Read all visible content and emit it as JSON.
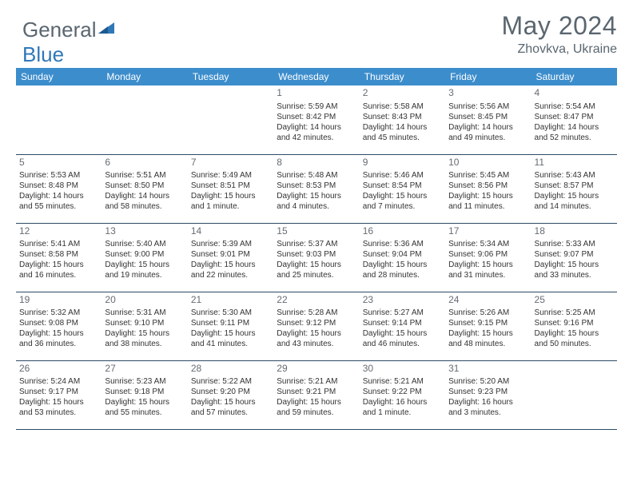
{
  "logo": {
    "part1": "General",
    "part2": "Blue"
  },
  "header": {
    "month": "May 2024",
    "location": "Zhovkva, Ukraine"
  },
  "colors": {
    "header_bg": "#3c8dcc",
    "header_text": "#ffffff",
    "cell_border": "#2c4a66",
    "body_text": "#333333",
    "muted_text": "#5a6670"
  },
  "day_names": [
    "Sunday",
    "Monday",
    "Tuesday",
    "Wednesday",
    "Thursday",
    "Friday",
    "Saturday"
  ],
  "weeks": [
    [
      null,
      null,
      null,
      {
        "d": "1",
        "sr": "Sunrise: 5:59 AM",
        "ss": "Sunset: 8:42 PM",
        "dl1": "Daylight: 14 hours",
        "dl2": "and 42 minutes."
      },
      {
        "d": "2",
        "sr": "Sunrise: 5:58 AM",
        "ss": "Sunset: 8:43 PM",
        "dl1": "Daylight: 14 hours",
        "dl2": "and 45 minutes."
      },
      {
        "d": "3",
        "sr": "Sunrise: 5:56 AM",
        "ss": "Sunset: 8:45 PM",
        "dl1": "Daylight: 14 hours",
        "dl2": "and 49 minutes."
      },
      {
        "d": "4",
        "sr": "Sunrise: 5:54 AM",
        "ss": "Sunset: 8:47 PM",
        "dl1": "Daylight: 14 hours",
        "dl2": "and 52 minutes."
      }
    ],
    [
      {
        "d": "5",
        "sr": "Sunrise: 5:53 AM",
        "ss": "Sunset: 8:48 PM",
        "dl1": "Daylight: 14 hours",
        "dl2": "and 55 minutes."
      },
      {
        "d": "6",
        "sr": "Sunrise: 5:51 AM",
        "ss": "Sunset: 8:50 PM",
        "dl1": "Daylight: 14 hours",
        "dl2": "and 58 minutes."
      },
      {
        "d": "7",
        "sr": "Sunrise: 5:49 AM",
        "ss": "Sunset: 8:51 PM",
        "dl1": "Daylight: 15 hours",
        "dl2": "and 1 minute."
      },
      {
        "d": "8",
        "sr": "Sunrise: 5:48 AM",
        "ss": "Sunset: 8:53 PM",
        "dl1": "Daylight: 15 hours",
        "dl2": "and 4 minutes."
      },
      {
        "d": "9",
        "sr": "Sunrise: 5:46 AM",
        "ss": "Sunset: 8:54 PM",
        "dl1": "Daylight: 15 hours",
        "dl2": "and 7 minutes."
      },
      {
        "d": "10",
        "sr": "Sunrise: 5:45 AM",
        "ss": "Sunset: 8:56 PM",
        "dl1": "Daylight: 15 hours",
        "dl2": "and 11 minutes."
      },
      {
        "d": "11",
        "sr": "Sunrise: 5:43 AM",
        "ss": "Sunset: 8:57 PM",
        "dl1": "Daylight: 15 hours",
        "dl2": "and 14 minutes."
      }
    ],
    [
      {
        "d": "12",
        "sr": "Sunrise: 5:41 AM",
        "ss": "Sunset: 8:58 PM",
        "dl1": "Daylight: 15 hours",
        "dl2": "and 16 minutes."
      },
      {
        "d": "13",
        "sr": "Sunrise: 5:40 AM",
        "ss": "Sunset: 9:00 PM",
        "dl1": "Daylight: 15 hours",
        "dl2": "and 19 minutes."
      },
      {
        "d": "14",
        "sr": "Sunrise: 5:39 AM",
        "ss": "Sunset: 9:01 PM",
        "dl1": "Daylight: 15 hours",
        "dl2": "and 22 minutes."
      },
      {
        "d": "15",
        "sr": "Sunrise: 5:37 AM",
        "ss": "Sunset: 9:03 PM",
        "dl1": "Daylight: 15 hours",
        "dl2": "and 25 minutes."
      },
      {
        "d": "16",
        "sr": "Sunrise: 5:36 AM",
        "ss": "Sunset: 9:04 PM",
        "dl1": "Daylight: 15 hours",
        "dl2": "and 28 minutes."
      },
      {
        "d": "17",
        "sr": "Sunrise: 5:34 AM",
        "ss": "Sunset: 9:06 PM",
        "dl1": "Daylight: 15 hours",
        "dl2": "and 31 minutes."
      },
      {
        "d": "18",
        "sr": "Sunrise: 5:33 AM",
        "ss": "Sunset: 9:07 PM",
        "dl1": "Daylight: 15 hours",
        "dl2": "and 33 minutes."
      }
    ],
    [
      {
        "d": "19",
        "sr": "Sunrise: 5:32 AM",
        "ss": "Sunset: 9:08 PM",
        "dl1": "Daylight: 15 hours",
        "dl2": "and 36 minutes."
      },
      {
        "d": "20",
        "sr": "Sunrise: 5:31 AM",
        "ss": "Sunset: 9:10 PM",
        "dl1": "Daylight: 15 hours",
        "dl2": "and 38 minutes."
      },
      {
        "d": "21",
        "sr": "Sunrise: 5:30 AM",
        "ss": "Sunset: 9:11 PM",
        "dl1": "Daylight: 15 hours",
        "dl2": "and 41 minutes."
      },
      {
        "d": "22",
        "sr": "Sunrise: 5:28 AM",
        "ss": "Sunset: 9:12 PM",
        "dl1": "Daylight: 15 hours",
        "dl2": "and 43 minutes."
      },
      {
        "d": "23",
        "sr": "Sunrise: 5:27 AM",
        "ss": "Sunset: 9:14 PM",
        "dl1": "Daylight: 15 hours",
        "dl2": "and 46 minutes."
      },
      {
        "d": "24",
        "sr": "Sunrise: 5:26 AM",
        "ss": "Sunset: 9:15 PM",
        "dl1": "Daylight: 15 hours",
        "dl2": "and 48 minutes."
      },
      {
        "d": "25",
        "sr": "Sunrise: 5:25 AM",
        "ss": "Sunset: 9:16 PM",
        "dl1": "Daylight: 15 hours",
        "dl2": "and 50 minutes."
      }
    ],
    [
      {
        "d": "26",
        "sr": "Sunrise: 5:24 AM",
        "ss": "Sunset: 9:17 PM",
        "dl1": "Daylight: 15 hours",
        "dl2": "and 53 minutes."
      },
      {
        "d": "27",
        "sr": "Sunrise: 5:23 AM",
        "ss": "Sunset: 9:18 PM",
        "dl1": "Daylight: 15 hours",
        "dl2": "and 55 minutes."
      },
      {
        "d": "28",
        "sr": "Sunrise: 5:22 AM",
        "ss": "Sunset: 9:20 PM",
        "dl1": "Daylight: 15 hours",
        "dl2": "and 57 minutes."
      },
      {
        "d": "29",
        "sr": "Sunrise: 5:21 AM",
        "ss": "Sunset: 9:21 PM",
        "dl1": "Daylight: 15 hours",
        "dl2": "and 59 minutes."
      },
      {
        "d": "30",
        "sr": "Sunrise: 5:21 AM",
        "ss": "Sunset: 9:22 PM",
        "dl1": "Daylight: 16 hours",
        "dl2": "and 1 minute."
      },
      {
        "d": "31",
        "sr": "Sunrise: 5:20 AM",
        "ss": "Sunset: 9:23 PM",
        "dl1": "Daylight: 16 hours",
        "dl2": "and 3 minutes."
      },
      null
    ]
  ]
}
